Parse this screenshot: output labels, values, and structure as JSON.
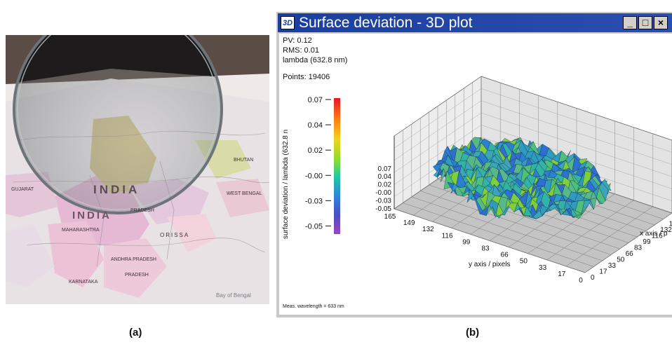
{
  "photo": {
    "map_labels": [
      "INDIA",
      "INDIA",
      "GUJARAT",
      "PRADESH",
      "MAHARASHTRA",
      "ORISSA",
      "ANDHRA PRADESH",
      "PRADESH",
      "KARNATAKA",
      "BHUTAN",
      "WEST BENGAL",
      "Bay of Bengal"
    ]
  },
  "captions": {
    "a": "(a)",
    "b": "(b)"
  },
  "window": {
    "title": "Surface deviation - 3D plot",
    "icon_text": "3D",
    "buttons": {
      "minimize": "_",
      "maximize": "□",
      "close": "×"
    }
  },
  "info": {
    "pv": "PV:     0.12",
    "rms": "RMS:   0.01",
    "lambda": "lambda (632.8 nm)",
    "points": "Points: 19406"
  },
  "colorbar": {
    "label": "surface deviation / lambda (632.8 n",
    "ticks": [
      "0.07",
      "0.04",
      "0.02",
      "-0.00",
      "-0.03",
      "-0.05"
    ],
    "colors": [
      "#e6152a",
      "#ff7a12",
      "#f2d21e",
      "#8ede2a",
      "#1ec9a6",
      "#2f83db",
      "#4d4fc6",
      "#9a46c4"
    ]
  },
  "plot3d": {
    "z_ticks": [
      "0.07",
      "0.04",
      "0.02",
      "-0.00",
      "-0.03",
      "-0.05"
    ],
    "y_ticks": [
      "165",
      "149",
      "132",
      "116",
      "99",
      "83",
      "66",
      "50",
      "33",
      "17",
      "0"
    ],
    "x_ticks": [
      "0",
      "17",
      "33",
      "50",
      "66",
      "83",
      "99",
      "116",
      "132",
      "149",
      "16"
    ],
    "y_label": "y axis / pixels",
    "x_label": "x axis / p"
  },
  "footer": {
    "wavelength": "Meas. wavelength = 633 nm"
  }
}
